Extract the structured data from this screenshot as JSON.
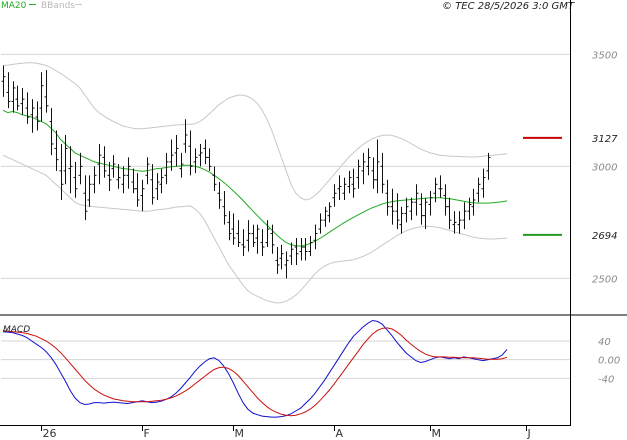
{
  "header": {
    "legend_ma": "MA20",
    "legend_bb": "BBands",
    "copyright": "© TEC 28/5/2026 3:0 GMT"
  },
  "colors": {
    "ma": "#22aa22",
    "bands": "#c8c8c8",
    "bars": "#111111",
    "grid": "#d6d6d6",
    "resistance": "#cc0000",
    "support": "#229922",
    "macd": "#1111cc",
    "signal": "#cc1111",
    "frame": "#000000"
  },
  "chart_data": [
    {
      "type": "ohlc",
      "panel": "price",
      "title": "",
      "legend": [
        "MA20",
        "BBands"
      ],
      "yticks": [
        2500,
        3000,
        3500
      ],
      "yticks_display": [
        "2500",
        "3000",
        "3500"
      ],
      "ylim": [
        2350,
        3680
      ],
      "levels": [
        {
          "name": "resistance",
          "value": 3127,
          "label": "3127",
          "color": "#cc0000"
        },
        {
          "name": "support",
          "value": 2694,
          "label": "2694",
          "color": "#229922"
        }
      ],
      "xticks": [
        "26",
        "F",
        "M",
        "A",
        "M",
        "J"
      ],
      "xtick_index": [
        8,
        29,
        48,
        69,
        89,
        109
      ],
      "n_slots": 115,
      "bars": [
        [
          3380,
          3450,
          3310,
          3400
        ],
        [
          3330,
          3420,
          3260,
          3290
        ],
        [
          3290,
          3380,
          3240,
          3350
        ],
        [
          3300,
          3360,
          3250,
          3270
        ],
        [
          3280,
          3350,
          3230,
          3300
        ],
        [
          3260,
          3330,
          3190,
          3220
        ],
        [
          3230,
          3300,
          3150,
          3260
        ],
        [
          3220,
          3290,
          3160,
          3200
        ],
        [
          3260,
          3420,
          3200,
          3360
        ],
        [
          3310,
          3430,
          3240,
          3270
        ],
        [
          3200,
          3260,
          3050,
          3100
        ],
        [
          3080,
          3160,
          2980,
          3030
        ],
        [
          2980,
          3100,
          2850,
          2920
        ],
        [
          2980,
          3140,
          2920,
          3080
        ],
        [
          2990,
          3090,
          2880,
          3000
        ],
        [
          2950,
          3020,
          2860,
          2900
        ],
        [
          2960,
          3060,
          2920,
          3000
        ],
        [
          2880,
          2960,
          2760,
          2800
        ],
        [
          2850,
          2960,
          2820,
          2920
        ],
        [
          2920,
          3000,
          2880,
          2960
        ],
        [
          3010,
          3100,
          2920,
          3050
        ],
        [
          3040,
          3090,
          2950,
          2980
        ],
        [
          2960,
          3020,
          2890,
          2940
        ],
        [
          2990,
          3050,
          2950,
          3010
        ],
        [
          2940,
          3010,
          2900,
          2950
        ],
        [
          2920,
          3000,
          2880,
          2960
        ],
        [
          2960,
          3040,
          2900,
          3000
        ],
        [
          2930,
          2990,
          2880,
          2900
        ],
        [
          2900,
          2970,
          2820,
          2850
        ],
        [
          2870,
          2940,
          2800,
          2900
        ],
        [
          2960,
          3040,
          2920,
          3010
        ],
        [
          2940,
          3010,
          2830,
          2860
        ],
        [
          2900,
          2970,
          2850,
          2930
        ],
        [
          2920,
          2990,
          2880,
          2950
        ],
        [
          2960,
          3060,
          2920,
          3020
        ],
        [
          3020,
          3120,
          2980,
          3050
        ],
        [
          3060,
          3140,
          3000,
          3080
        ],
        [
          2990,
          3060,
          2950,
          3010
        ],
        [
          3100,
          3210,
          3060,
          3140
        ],
        [
          3090,
          3160,
          2960,
          3000
        ],
        [
          3020,
          3080,
          2970,
          3040
        ],
        [
          3050,
          3100,
          3000,
          3060
        ],
        [
          3080,
          3120,
          3010,
          3040
        ],
        [
          3040,
          3080,
          2980,
          3000
        ],
        [
          2960,
          3000,
          2890,
          2920
        ],
        [
          2880,
          2930,
          2810,
          2850
        ],
        [
          2820,
          2890,
          2740,
          2780
        ],
        [
          2750,
          2800,
          2670,
          2700
        ],
        [
          2720,
          2790,
          2650,
          2680
        ],
        [
          2700,
          2760,
          2640,
          2660
        ],
        [
          2650,
          2720,
          2600,
          2640
        ],
        [
          2670,
          2760,
          2620,
          2700
        ],
        [
          2700,
          2740,
          2640,
          2660
        ],
        [
          2680,
          2740,
          2610,
          2720
        ],
        [
          2660,
          2720,
          2600,
          2640
        ],
        [
          2660,
          2760,
          2640,
          2720
        ],
        [
          2700,
          2740,
          2610,
          2650
        ],
        [
          2580,
          2640,
          2520,
          2560
        ],
        [
          2590,
          2650,
          2540,
          2610
        ],
        [
          2560,
          2620,
          2500,
          2580
        ],
        [
          2600,
          2660,
          2560,
          2630
        ],
        [
          2640,
          2680,
          2560,
          2610
        ],
        [
          2620,
          2680,
          2580,
          2640
        ],
        [
          2640,
          2680,
          2580,
          2620
        ],
        [
          2620,
          2690,
          2600,
          2660
        ],
        [
          2670,
          2740,
          2630,
          2700
        ],
        [
          2720,
          2790,
          2700,
          2760
        ],
        [
          2760,
          2820,
          2730,
          2800
        ],
        [
          2780,
          2840,
          2750,
          2820
        ],
        [
          2860,
          2920,
          2820,
          2880
        ],
        [
          2900,
          2960,
          2850,
          2910
        ],
        [
          2880,
          2950,
          2850,
          2920
        ],
        [
          2910,
          2980,
          2880,
          2950
        ],
        [
          2920,
          2990,
          2860,
          2900
        ],
        [
          2950,
          3030,
          2900,
          3000
        ],
        [
          2980,
          3060,
          2920,
          3020
        ],
        [
          3000,
          3080,
          2960,
          3040
        ],
        [
          2980,
          3040,
          2900,
          2940
        ],
        [
          2940,
          3120,
          2880,
          3020
        ],
        [
          3000,
          3060,
          2880,
          2920
        ],
        [
          2880,
          2940,
          2780,
          2820
        ],
        [
          2820,
          2900,
          2740,
          2800
        ],
        [
          2800,
          2880,
          2720,
          2760
        ],
        [
          2740,
          2820,
          2700,
          2790
        ],
        [
          2790,
          2860,
          2750,
          2820
        ],
        [
          2800,
          2860,
          2760,
          2840
        ],
        [
          2840,
          2920,
          2780,
          2880
        ],
        [
          2830,
          2880,
          2740,
          2780
        ],
        [
          2780,
          2860,
          2720,
          2840
        ],
        [
          2830,
          2890,
          2780,
          2860
        ],
        [
          2880,
          2950,
          2840,
          2920
        ],
        [
          2900,
          2960,
          2860,
          2900
        ],
        [
          2870,
          2920,
          2780,
          2820
        ],
        [
          2820,
          2860,
          2720,
          2760
        ],
        [
          2740,
          2800,
          2700,
          2750
        ],
        [
          2740,
          2800,
          2700,
          2760
        ],
        [
          2760,
          2840,
          2720,
          2800
        ],
        [
          2800,
          2860,
          2760,
          2830
        ],
        [
          2820,
          2900,
          2780,
          2850
        ],
        [
          2880,
          2950,
          2840,
          2920
        ],
        [
          2900,
          2990,
          2860,
          2950
        ],
        [
          2980,
          3060,
          2940,
          3040
        ]
      ],
      "ma20": [
        3250,
        3240,
        3245,
        3240,
        3230,
        3225,
        3220,
        3210,
        3200,
        3190,
        3170,
        3150,
        3120,
        3100,
        3080,
        3060,
        3050,
        3040,
        3030,
        3020,
        3015,
        3010,
        3005,
        3000,
        2995,
        2990,
        2988,
        2985,
        2980,
        2978,
        2980,
        2985,
        2990,
        2992,
        2995,
        2998,
        3000,
        3002,
        3005,
        3005,
        3000,
        2995,
        2985,
        2975,
        2960,
        2945,
        2928,
        2910,
        2890,
        2870,
        2848,
        2825,
        2802,
        2780,
        2758,
        2738,
        2716,
        2694,
        2676,
        2660,
        2650,
        2646,
        2644,
        2648,
        2656,
        2666,
        2678,
        2692,
        2706,
        2720,
        2734,
        2748,
        2760,
        2772,
        2784,
        2795,
        2806,
        2816,
        2824,
        2832,
        2838,
        2842,
        2846,
        2848,
        2850,
        2852,
        2854,
        2856,
        2858,
        2860,
        2860,
        2860,
        2858,
        2856,
        2852,
        2848,
        2844,
        2840,
        2838,
        2836,
        2836,
        2836,
        2838,
        2840,
        2842,
        2846
      ],
      "bb_upper": [
        3450,
        3452,
        3455,
        3458,
        3460,
        3462,
        3462,
        3460,
        3456,
        3450,
        3440,
        3428,
        3415,
        3400,
        3385,
        3370,
        3350,
        3320,
        3290,
        3260,
        3240,
        3225,
        3212,
        3200,
        3190,
        3180,
        3175,
        3170,
        3168,
        3168,
        3170,
        3172,
        3175,
        3178,
        3180,
        3182,
        3185,
        3186,
        3188,
        3188,
        3190,
        3200,
        3215,
        3235,
        3255,
        3275,
        3290,
        3305,
        3312,
        3318,
        3318,
        3312,
        3300,
        3280,
        3250,
        3210,
        3160,
        3100,
        3040,
        2980,
        2920,
        2880,
        2860,
        2850,
        2855,
        2870,
        2890,
        2915,
        2940,
        2965,
        2990,
        3015,
        3040,
        3060,
        3080,
        3098,
        3112,
        3124,
        3132,
        3138,
        3140,
        3138,
        3132,
        3124,
        3114,
        3102,
        3090,
        3078,
        3068,
        3060,
        3055,
        3050,
        3048,
        3046,
        3045,
        3044,
        3043,
        3042,
        3042,
        3043,
        3045,
        3048,
        3050,
        3052,
        3054,
        3056
      ],
      "bb_lower": [
        3050,
        3040,
        3030,
        3020,
        3010,
        3000,
        2990,
        2980,
        2970,
        2960,
        2940,
        2920,
        2900,
        2880,
        2860,
        2840,
        2830,
        2825,
        2822,
        2820,
        2818,
        2816,
        2814,
        2812,
        2810,
        2808,
        2806,
        2804,
        2802,
        2800,
        2800,
        2802,
        2806,
        2808,
        2810,
        2814,
        2818,
        2820,
        2822,
        2824,
        2810,
        2790,
        2760,
        2720,
        2680,
        2640,
        2600,
        2560,
        2530,
        2500,
        2470,
        2445,
        2430,
        2420,
        2410,
        2400,
        2395,
        2390,
        2392,
        2398,
        2410,
        2425,
        2445,
        2470,
        2495,
        2520,
        2540,
        2555,
        2565,
        2572,
        2575,
        2578,
        2580,
        2584,
        2590,
        2598,
        2608,
        2620,
        2634,
        2648,
        2662,
        2676,
        2690,
        2702,
        2712,
        2720,
        2726,
        2730,
        2732,
        2732,
        2730,
        2726,
        2720,
        2714,
        2708,
        2702,
        2696,
        2690,
        2684,
        2680,
        2678,
        2676,
        2676,
        2677,
        2678,
        2680
      ]
    },
    {
      "type": "line",
      "panel": "macd",
      "title": "MACD",
      "yticks": [
        40,
        0,
        -40
      ],
      "yticks_display": [
        "40",
        "0.00",
        "-40"
      ],
      "ylim": [
        -140,
        85
      ],
      "series": [
        {
          "name": "MACD",
          "color": "#1111cc",
          "values": [
            60,
            59,
            58,
            55,
            52,
            47,
            40,
            33,
            26,
            17,
            5,
            -10,
            -28,
            -46,
            -66,
            -82,
            -92,
            -96,
            -95,
            -92,
            -92,
            -93,
            -92,
            -91,
            -92,
            -93,
            -94,
            -92,
            -90,
            -88,
            -90,
            -92,
            -91,
            -89,
            -85,
            -80,
            -72,
            -62,
            -50,
            -38,
            -25,
            -14,
            -5,
            2,
            4,
            -2,
            -14,
            -30,
            -50,
            -72,
            -92,
            -106,
            -114,
            -118,
            -121,
            -122,
            -123,
            -123,
            -122,
            -120,
            -116,
            -110,
            -104,
            -94,
            -84,
            -72,
            -58,
            -44,
            -28,
            -12,
            4,
            20,
            36,
            50,
            60,
            70,
            78,
            84,
            82,
            76,
            64,
            52,
            38,
            26,
            14,
            6,
            -2,
            -6,
            -4,
            0,
            4,
            6,
            4,
            2,
            4,
            2,
            6,
            4,
            2,
            0,
            -2,
            0,
            2,
            4,
            10,
            22
          ]
        },
        {
          "name": "Signal",
          "color": "#cc1111",
          "values": [
            62,
            61,
            60,
            59,
            58,
            56,
            53,
            50,
            45,
            40,
            33,
            25,
            15,
            4,
            -8,
            -20,
            -32,
            -44,
            -54,
            -63,
            -70,
            -76,
            -80,
            -84,
            -86,
            -88,
            -89,
            -90,
            -90,
            -90,
            -90,
            -89,
            -88,
            -87,
            -85,
            -82,
            -78,
            -73,
            -67,
            -60,
            -52,
            -44,
            -36,
            -28,
            -21,
            -17,
            -16,
            -19,
            -25,
            -34,
            -46,
            -58,
            -70,
            -82,
            -92,
            -101,
            -108,
            -113,
            -117,
            -119,
            -120,
            -119,
            -116,
            -112,
            -106,
            -98,
            -88,
            -77,
            -65,
            -52,
            -38,
            -24,
            -10,
            4,
            18,
            32,
            44,
            55,
            63,
            67,
            68,
            66,
            60,
            52,
            42,
            33,
            25,
            18,
            12,
            8,
            6,
            6,
            6,
            5,
            5,
            4,
            4,
            4,
            4,
            3,
            2,
            1,
            1,
            1,
            2,
            5
          ]
        }
      ]
    }
  ]
}
